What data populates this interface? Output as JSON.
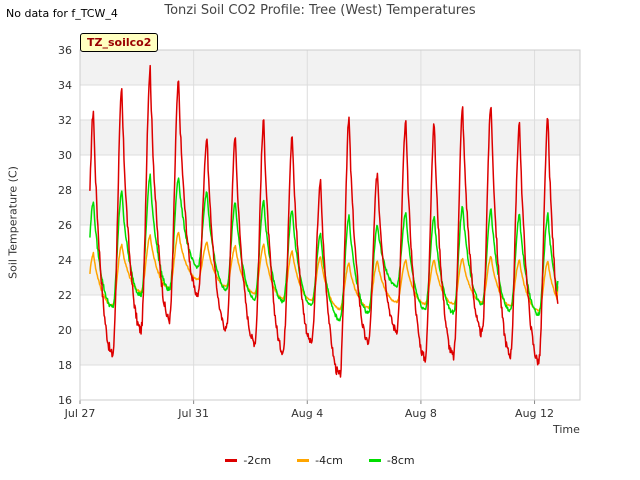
{
  "header": {
    "no_data_note": "No data for f_TCW_4",
    "title": "Tonzi Soil CO2 Profile: Tree (West) Temperatures",
    "badge": "TZ_soilco2"
  },
  "chart_data": {
    "type": "line",
    "title": "Tonzi Soil CO2 Profile: Tree (West) Temperatures",
    "xlabel": "Time",
    "ylabel": "Soil Temperature (C)",
    "xlim": [
      0,
      17.6
    ],
    "ylim": [
      16,
      36
    ],
    "yticks": [
      16,
      18,
      20,
      22,
      24,
      26,
      28,
      30,
      32,
      34,
      36
    ],
    "xticks": [
      {
        "pos": 0,
        "label": "Jul 27"
      },
      {
        "pos": 4,
        "label": "Jul 31"
      },
      {
        "pos": 8,
        "label": "Aug 4"
      },
      {
        "pos": 12,
        "label": "Aug 8"
      },
      {
        "pos": 16,
        "label": "Aug 12"
      }
    ],
    "grid": true,
    "legend_position": "bottom-center",
    "x_units": "days since Jul 27",
    "series": [
      {
        "name": "-2cm",
        "color": "#dd0000",
        "daily_min": [
          18.1,
          18.6,
          20.0,
          20.6,
          22.0,
          20.1,
          19.3,
          18.8,
          19.3,
          17.4,
          19.3,
          20.0,
          18.4,
          18.5,
          19.8,
          18.6,
          18.2
        ],
        "daily_max": [
          32.6,
          33.7,
          35.0,
          34.2,
          31.0,
          31.1,
          32.0,
          31.1,
          28.5,
          32.1,
          29.0,
          31.9,
          31.8,
          32.7,
          32.9,
          31.9,
          32.1
        ],
        "start": 20.5,
        "end": 21.5
      },
      {
        "name": "-4cm",
        "color": "#ffa500",
        "daily_min": [
          21.0,
          21.4,
          22.2,
          22.4,
          22.9,
          22.5,
          22.1,
          21.8,
          21.7,
          21.2,
          21.3,
          21.6,
          21.5,
          21.5,
          21.6,
          21.4,
          21.1
        ],
        "daily_max": [
          24.4,
          24.9,
          25.4,
          25.6,
          25.0,
          24.8,
          24.9,
          24.5,
          24.2,
          23.8,
          23.9,
          24.0,
          24.0,
          24.1,
          24.2,
          24.0,
          23.9
        ],
        "start": 21.7,
        "end": 22.5
      },
      {
        "name": "-8cm",
        "color": "#00dd00",
        "daily_min": [
          21.2,
          21.3,
          22.0,
          22.3,
          23.6,
          22.3,
          21.8,
          21.6,
          21.4,
          20.6,
          21.0,
          22.5,
          21.2,
          21.0,
          21.5,
          21.1,
          20.9
        ],
        "daily_max": [
          27.4,
          28.0,
          28.8,
          28.8,
          27.9,
          27.3,
          27.4,
          26.9,
          25.5,
          26.5,
          26.0,
          26.7,
          26.5,
          27.1,
          27.0,
          26.6,
          26.6
        ],
        "start": 22.6,
        "end": 22.8
      }
    ]
  }
}
